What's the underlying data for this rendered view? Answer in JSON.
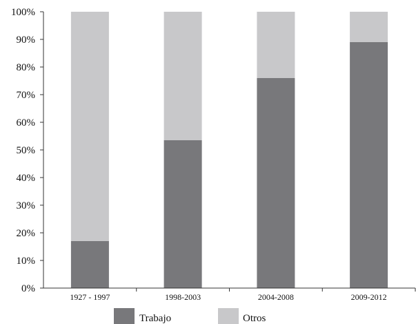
{
  "chart_data": {
    "type": "bar",
    "stacked": true,
    "categories": [
      "1927 - 1997",
      "1998-2003",
      "2004-2008",
      "2009-2012"
    ],
    "series": [
      {
        "name": "Trabajo",
        "values": [
          17,
          53.5,
          76,
          89
        ],
        "color": "#78787b"
      },
      {
        "name": "Otros",
        "values": [
          83,
          46.5,
          24,
          11
        ],
        "color": "#c8c8ca"
      }
    ],
    "ylim": [
      0,
      100
    ],
    "yticks": [
      "0%",
      "10%",
      "20%",
      "30%",
      "40%",
      "50%",
      "60%",
      "70%",
      "80%",
      "90%",
      "100%"
    ],
    "grid": false,
    "legend_position": "bottom",
    "title": "",
    "xlabel": "",
    "ylabel": ""
  }
}
